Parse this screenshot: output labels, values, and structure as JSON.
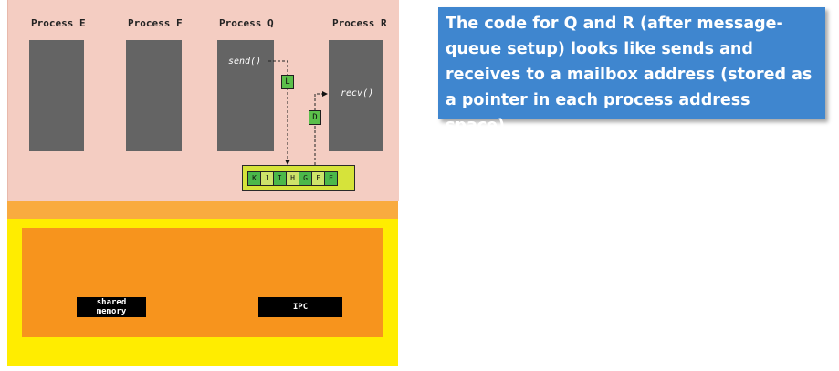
{
  "processes": [
    {
      "label": "Process E"
    },
    {
      "label": "Process F"
    },
    {
      "label": "Process Q",
      "code": "send()"
    },
    {
      "label": "Process R",
      "code": "recv()"
    }
  ],
  "messages": {
    "sent": "L",
    "received": "D"
  },
  "queue": {
    "cells": [
      "K",
      "J",
      "I",
      "H",
      "G",
      "F",
      "E"
    ]
  },
  "kernel": {
    "shared_memory": "shared\nmemory",
    "ipc": "IPC"
  },
  "colors": {
    "user_space": "#f4cdc2",
    "kernel_band": "#f9ab3f",
    "kernel_outer": "#ffed00",
    "kernel_inner": "#f7941d",
    "process_box": "#646464",
    "message_tag": "#5bbf4a",
    "queue_bg": "#d6e33a",
    "note_bg": "#3f86cf"
  },
  "note": {
    "text": "The code for Q and R (after message-queue setup) looks like sends and receives to a mailbox address (stored as a pointer in each process address space)."
  }
}
